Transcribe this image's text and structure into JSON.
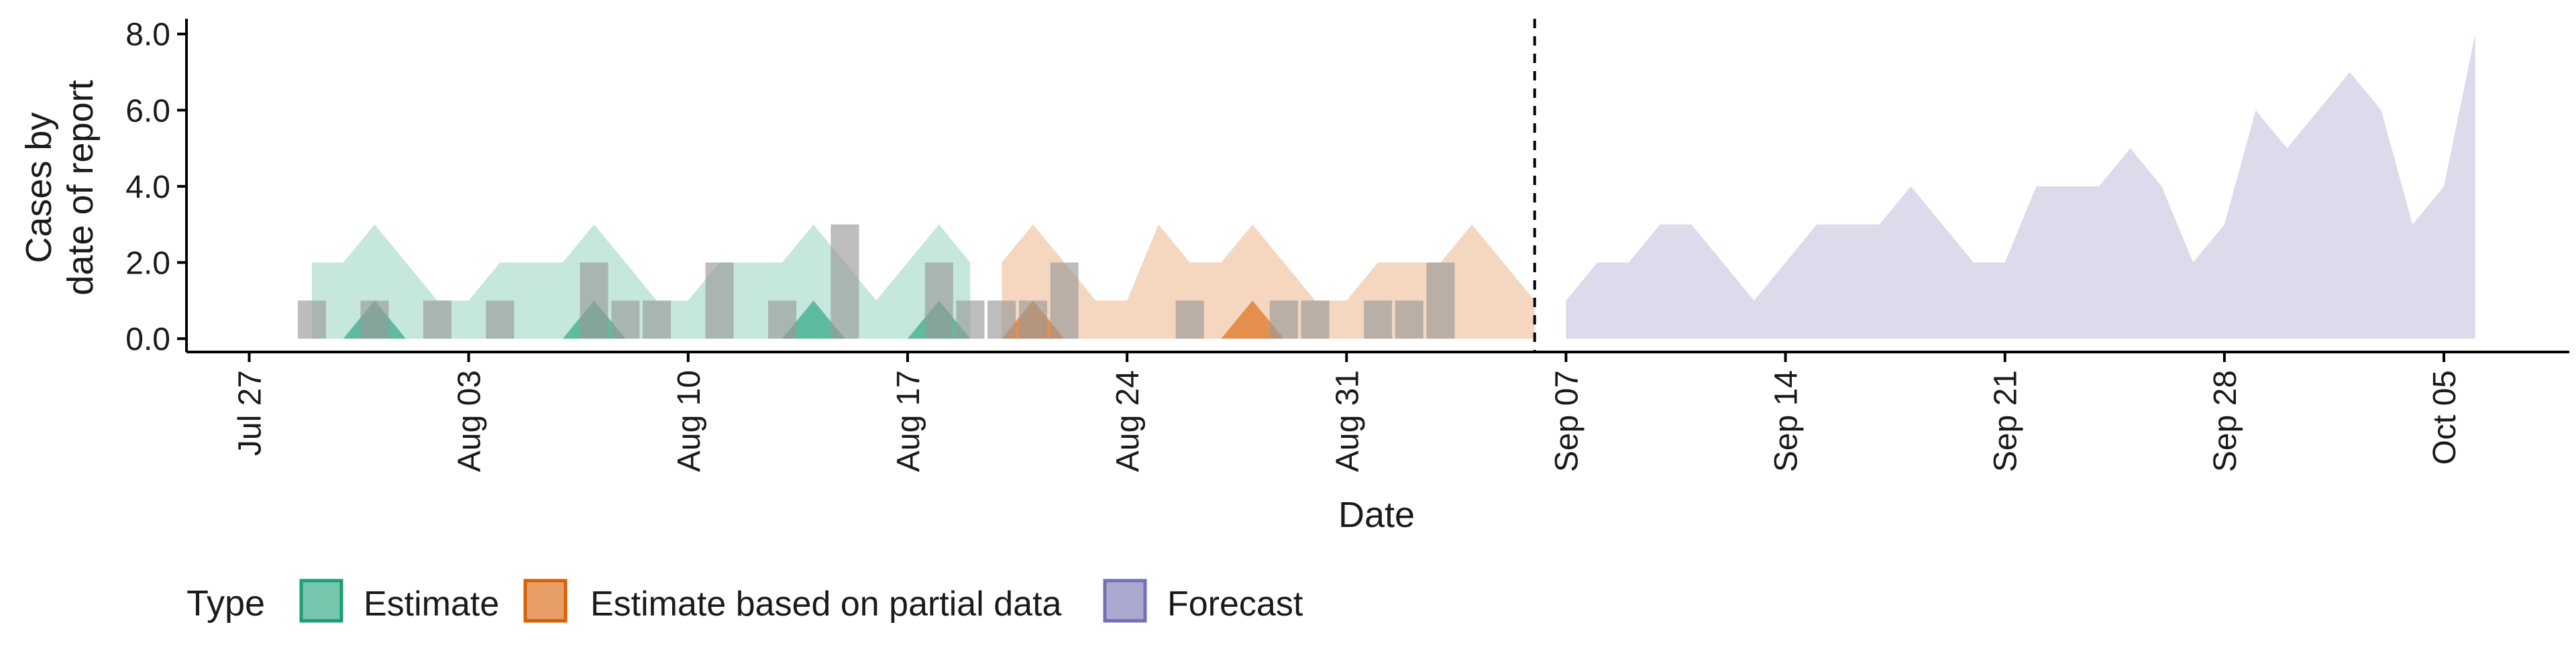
{
  "chart_data": {
    "type": "area",
    "title": "",
    "xlabel": "Date",
    "ylabel_lines": [
      "Cases by",
      "date of report"
    ],
    "ylim": [
      -0.35,
      8.4
    ],
    "yticks": [
      0,
      2,
      4,
      6,
      8
    ],
    "ytick_labels": [
      "0.0",
      "2.0",
      "4.0",
      "6.0",
      "8.0"
    ],
    "xlim": [
      "2020-07-25",
      "2020-10-09"
    ],
    "xticks": [
      "2020-07-27",
      "2020-08-03",
      "2020-08-10",
      "2020-08-17",
      "2020-08-24",
      "2020-08-31",
      "2020-09-07",
      "2020-09-14",
      "2020-09-21",
      "2020-09-28",
      "2020-10-05"
    ],
    "xtick_labels": [
      "Jul 27",
      "Aug 03",
      "Aug 10",
      "Aug 17",
      "Aug 24",
      "Aug 31",
      "Sep 07",
      "Sep 14",
      "Sep 21",
      "Sep 28",
      "Oct 05"
    ],
    "forecast_date": "2020-09-06",
    "legend_title": "Type",
    "legend_position": "bottom-left",
    "colors": {
      "Estimate": "#1b9e77",
      "Estimate based on partial data": "#d95f02",
      "Forecast": "#7570b3",
      "observed": "#999999",
      "axis": "#000000"
    },
    "observed_cases": {
      "dates": [
        "2020-07-29",
        "2020-07-31",
        "2020-08-01",
        "2020-08-02",
        "2020-08-03",
        "2020-08-04",
        "2020-08-05",
        "2020-08-06",
        "2020-08-07",
        "2020-08-08",
        "2020-08-09",
        "2020-08-10",
        "2020-08-11",
        "2020-08-12",
        "2020-08-13",
        "2020-08-14",
        "2020-08-15",
        "2020-08-16",
        "2020-08-17",
        "2020-08-18",
        "2020-08-19",
        "2020-08-20",
        "2020-08-21",
        "2020-08-22",
        "2020-08-23",
        "2020-08-24",
        "2020-08-25",
        "2020-08-26",
        "2020-08-27",
        "2020-08-28",
        "2020-08-29",
        "2020-08-30",
        "2020-08-31",
        "2020-09-01",
        "2020-09-02",
        "2020-09-03",
        "2020-09-04"
      ],
      "values": [
        1,
        1,
        0,
        1,
        0,
        1,
        0,
        0,
        2,
        1,
        1,
        0,
        2,
        0,
        1,
        0,
        3,
        0,
        0,
        2,
        1,
        1,
        1,
        2,
        0,
        0,
        0,
        1,
        0,
        0,
        1,
        1,
        0,
        1,
        1,
        2,
        0
      ]
    },
    "series": [
      {
        "name": "Estimate",
        "x": [
          "2020-07-29",
          "2020-07-30",
          "2020-07-31",
          "2020-08-01",
          "2020-08-02",
          "2020-08-03",
          "2020-08-04",
          "2020-08-05",
          "2020-08-06",
          "2020-08-07",
          "2020-08-08",
          "2020-08-09",
          "2020-08-10",
          "2020-08-11",
          "2020-08-12",
          "2020-08-13",
          "2020-08-14",
          "2020-08-15",
          "2020-08-16",
          "2020-08-17",
          "2020-08-18",
          "2020-08-19"
        ],
        "lower": [
          0,
          0,
          0,
          0,
          0,
          0,
          0,
          0,
          0,
          0,
          0,
          0,
          0,
          0,
          0,
          0,
          0,
          0,
          0,
          0,
          0,
          0
        ],
        "upper": [
          2,
          2,
          3,
          2,
          1,
          1,
          2,
          2,
          2,
          3,
          2,
          1,
          1,
          2,
          2,
          2,
          3,
          2,
          1,
          2,
          3,
          2
        ],
        "inner_lower": [
          0,
          0,
          0,
          0,
          0,
          0,
          0,
          0,
          0,
          0,
          0,
          0,
          0,
          0,
          0,
          0,
          0,
          0,
          0,
          0,
          0,
          0
        ],
        "inner_upper": [
          0,
          0,
          1,
          0,
          0,
          0,
          0,
          0,
          0,
          1,
          0,
          0,
          0,
          0,
          0,
          0,
          1,
          0,
          0,
          0,
          1,
          0
        ]
      },
      {
        "name": "Estimate based on partial data",
        "x": [
          "2020-08-20",
          "2020-08-21",
          "2020-08-22",
          "2020-08-23",
          "2020-08-24",
          "2020-08-25",
          "2020-08-26",
          "2020-08-27",
          "2020-08-28",
          "2020-08-29",
          "2020-08-30",
          "2020-08-31",
          "2020-09-01",
          "2020-09-02",
          "2020-09-03",
          "2020-09-04",
          "2020-09-05",
          "2020-09-06"
        ],
        "lower": [
          0,
          0,
          0,
          0,
          0,
          0,
          0,
          0,
          0,
          0,
          0,
          0,
          0,
          0,
          0,
          0,
          0,
          0
        ],
        "upper": [
          2,
          3,
          2,
          1,
          1,
          3,
          2,
          2,
          3,
          2,
          1,
          1,
          2,
          2,
          2,
          3,
          2,
          1
        ],
        "inner_lower": [
          0,
          0,
          0,
          0,
          0,
          0,
          0,
          0,
          0,
          0,
          0,
          0,
          0,
          0,
          0,
          0,
          0,
          0
        ],
        "inner_upper": [
          0,
          1,
          0,
          0,
          0,
          0,
          0,
          0,
          1,
          0,
          0,
          0,
          0,
          0,
          0,
          0,
          0,
          0
        ]
      },
      {
        "name": "Forecast",
        "x": [
          "2020-09-07",
          "2020-09-08",
          "2020-09-09",
          "2020-09-10",
          "2020-09-11",
          "2020-09-12",
          "2020-09-13",
          "2020-09-14",
          "2020-09-15",
          "2020-09-16",
          "2020-09-17",
          "2020-09-18",
          "2020-09-19",
          "2020-09-20",
          "2020-09-21",
          "2020-09-22",
          "2020-09-23",
          "2020-09-24",
          "2020-09-25",
          "2020-09-26",
          "2020-09-27",
          "2020-09-28",
          "2020-09-29",
          "2020-09-30",
          "2020-10-01",
          "2020-10-02",
          "2020-10-03",
          "2020-10-04",
          "2020-10-05",
          "2020-10-06"
        ],
        "lower": [
          0,
          0,
          0,
          0,
          0,
          0,
          0,
          0,
          0,
          0,
          0,
          0,
          0,
          0,
          0,
          0,
          0,
          0,
          0,
          0,
          0,
          0,
          0,
          0,
          0,
          0,
          0,
          0,
          0,
          0
        ],
        "upper": [
          1,
          2,
          2,
          3,
          3,
          2,
          1,
          2,
          3,
          3,
          3,
          4,
          3,
          2,
          2,
          4,
          4,
          4,
          5,
          4,
          2,
          3,
          6,
          5,
          6,
          7,
          6,
          3,
          4,
          8
        ]
      }
    ]
  }
}
